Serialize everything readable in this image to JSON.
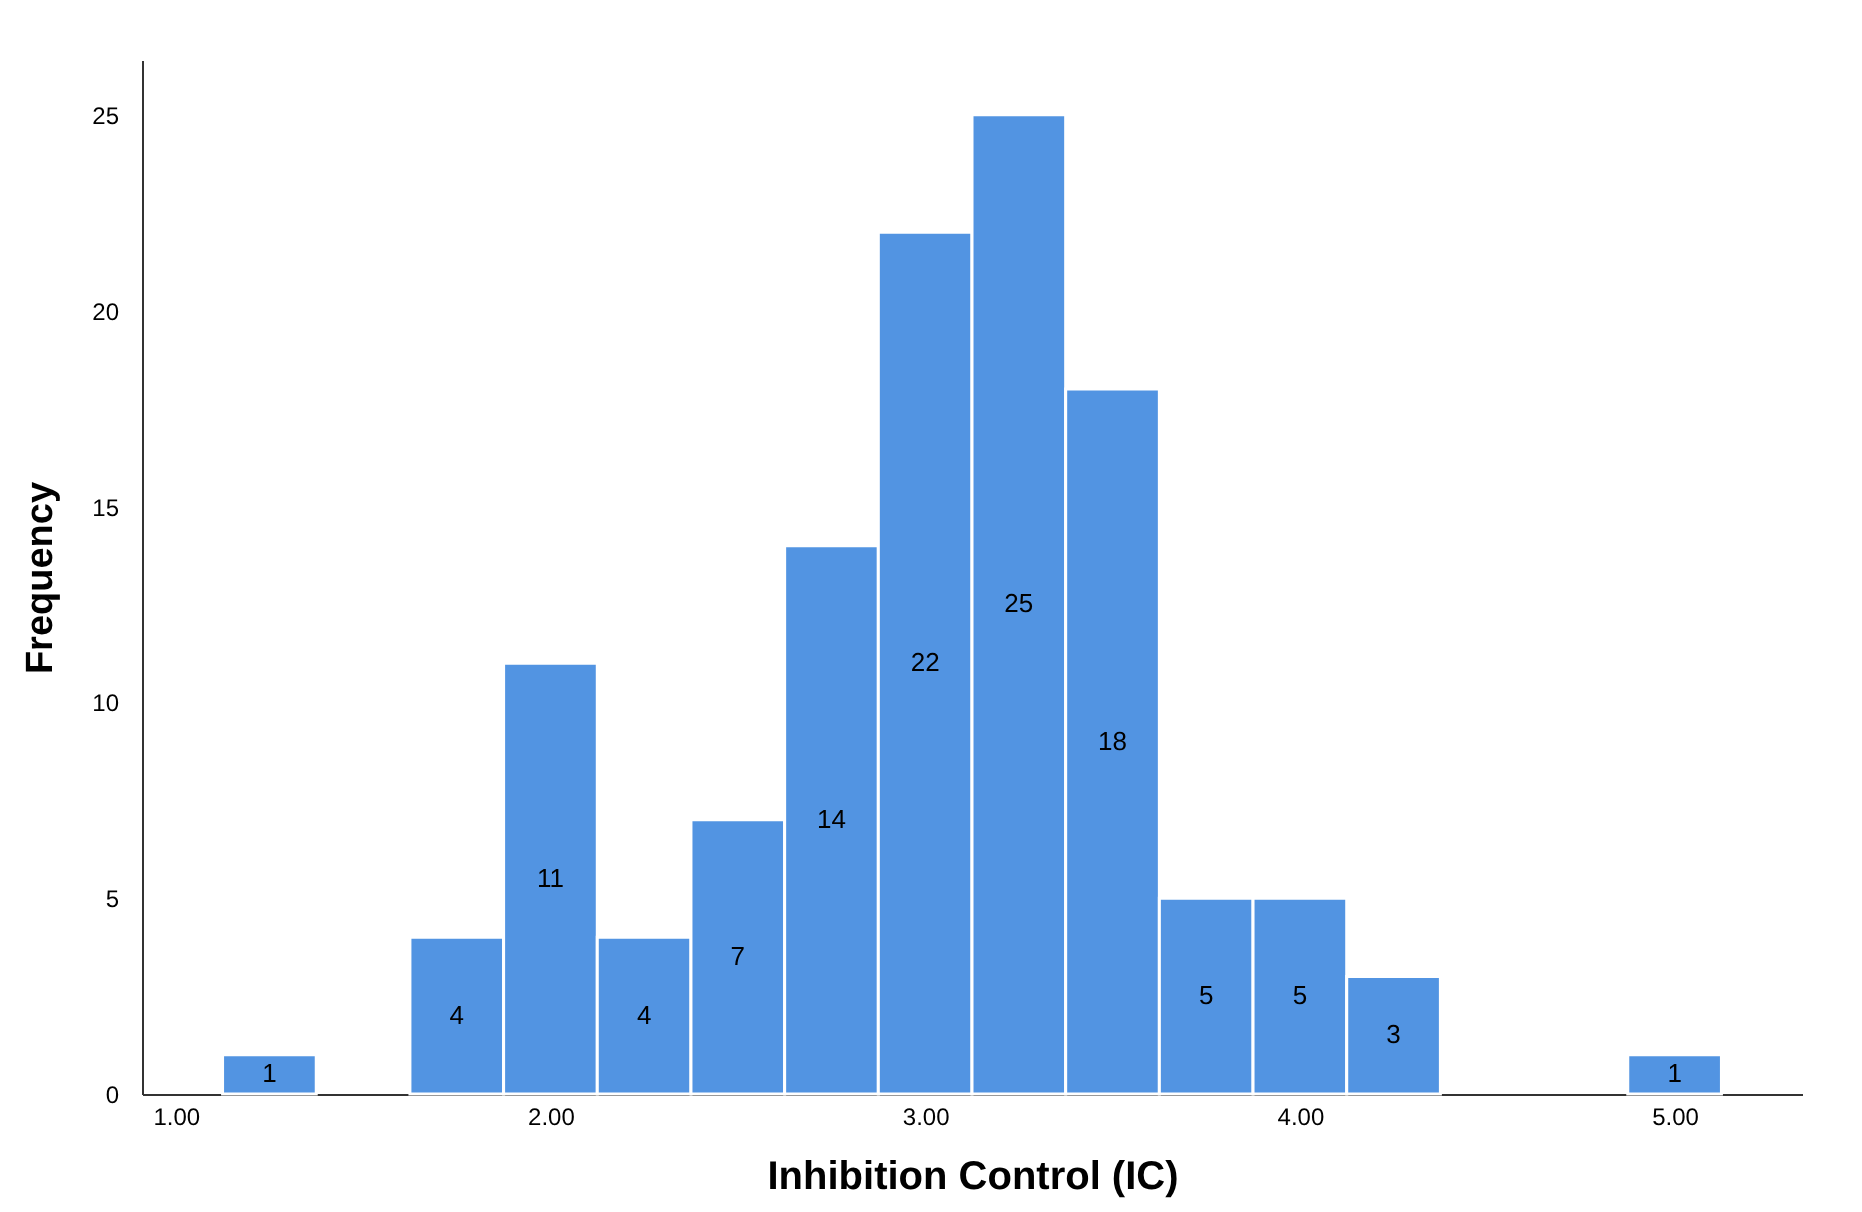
{
  "chart_data": {
    "type": "histogram",
    "xlabel": "Inhibition Control (IC)",
    "ylabel": "Frequency",
    "bins": [
      1.125,
      1.375,
      1.625,
      1.875,
      2.125,
      2.375,
      2.625,
      2.875,
      3.125,
      3.375,
      3.625,
      3.875,
      4.125,
      4.375,
      4.625,
      4.875,
      5.125
    ],
    "values": [
      1,
      0,
      4,
      11,
      4,
      7,
      14,
      22,
      25,
      18,
      5,
      5,
      3,
      0,
      0,
      1
    ],
    "value_labels": [
      "1",
      null,
      "4",
      "11",
      "4",
      "7",
      "14",
      "22",
      "25",
      "18",
      "5",
      "5",
      "3",
      null,
      null,
      "1"
    ],
    "color": "#5294e2",
    "xlim": [
      0.91,
      5.34
    ],
    "xticks": [
      {
        "value": 1,
        "label": "1.00"
      },
      {
        "value": 2,
        "label": "2.00"
      },
      {
        "value": 3,
        "label": "3.00"
      },
      {
        "value": 4,
        "label": "4.00"
      },
      {
        "value": 5,
        "label": "5.00"
      }
    ],
    "ylim": [
      0,
      26.4
    ],
    "yticks": [
      0,
      5,
      10,
      15,
      20,
      25
    ],
    "grid": false
  }
}
